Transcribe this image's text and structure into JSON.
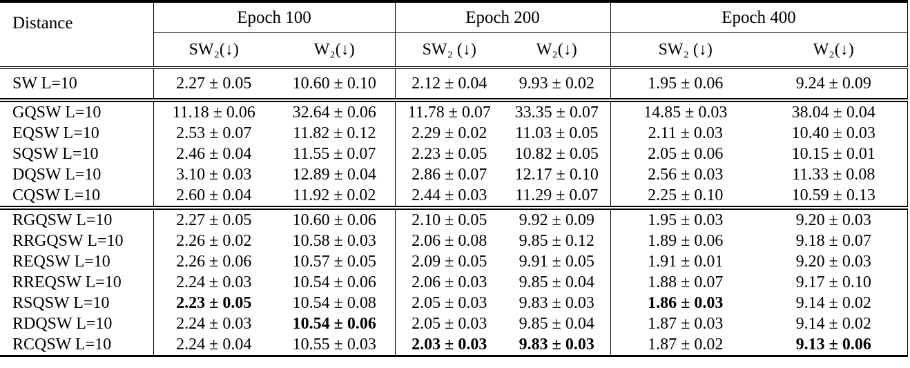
{
  "page": {
    "background_color": "#ffffff",
    "text_color": "#000000",
    "rule_color": "#000000"
  },
  "table": {
    "distance_header": "Distance",
    "epoch_groups": [
      {
        "label": "Epoch 100",
        "subcolumns": [
          "SW₂(↓)",
          "W₂(↓)"
        ]
      },
      {
        "label": "Epoch 200",
        "subcolumns": [
          "SW₂ (↓)",
          "W₂(↓)"
        ]
      },
      {
        "label": "Epoch 400",
        "subcolumns": [
          "SW₂ (↓)",
          "W₂(↓)"
        ]
      }
    ],
    "sections": [
      {
        "rows": [
          {
            "label": "SW L=10",
            "values": [
              "2.27 ± 0.05",
              "10.60 ± 0.10",
              "2.12 ± 0.04",
              "9.93 ± 0.02",
              "1.95 ± 0.06",
              "9.24 ± 0.09"
            ],
            "bold": []
          }
        ]
      },
      {
        "rows": [
          {
            "label": "GQSW L=10",
            "values": [
              "11.18 ± 0.06",
              "32.64 ± 0.06",
              "11.78 ± 0.07",
              "33.35 ± 0.07",
              "14.85 ± 0.03",
              "38.04 ± 0.04"
            ],
            "bold": []
          },
          {
            "label": "EQSW L=10",
            "values": [
              "2.53 ± 0.07",
              "11.82 ± 0.12",
              "2.29 ± 0.02",
              "11.03 ± 0.05",
              "2.11 ± 0.03",
              "10.40 ± 0.03"
            ],
            "bold": []
          },
          {
            "label": "SQSW L=10",
            "values": [
              "2.46 ± 0.04",
              "11.55 ± 0.07",
              "2.23 ± 0.05",
              "10.82 ± 0.05",
              "2.05 ± 0.06",
              "10.15 ± 0.01"
            ],
            "bold": []
          },
          {
            "label": "DQSW L=10",
            "values": [
              "3.10 ± 0.03",
              "12.89 ± 0.04",
              "2.86 ± 0.07",
              "12.17 ± 0.10",
              "2.56 ± 0.03",
              "11.33 ± 0.08"
            ],
            "bold": []
          },
          {
            "label": "CQSW L=10",
            "values": [
              "2.60 ± 0.04",
              "11.92 ± 0.02",
              "2.44 ± 0.03",
              "11.29 ± 0.07",
              "2.25 ± 0.10",
              "10.59 ± 0.13"
            ],
            "bold": []
          }
        ]
      },
      {
        "rows": [
          {
            "label": "RGQSW L=10",
            "values": [
              "2.27 ± 0.05",
              "10.60 ± 0.06",
              "2.10 ± 0.05",
              "9.92 ± 0.09",
              "1.95 ± 0.03",
              "9.20 ± 0.03"
            ],
            "bold": []
          },
          {
            "label": "RRGQSW L=10",
            "values": [
              "2.26 ± 0.02",
              "10.58 ± 0.03",
              "2.06 ± 0.08",
              "9.85 ± 0.12",
              "1.89 ± 0.06",
              "9.18 ± 0.07"
            ],
            "bold": []
          },
          {
            "label": "REQSW L=10",
            "values": [
              "2.26 ± 0.06",
              "10.57 ± 0.05",
              "2.09 ± 0.05",
              "9.91 ± 0.05",
              "1.91 ± 0.01",
              "9.20 ± 0.03"
            ],
            "bold": []
          },
          {
            "label": "RREQSW L=10",
            "values": [
              "2.24 ± 0.03",
              "10.54 ± 0.06",
              "2.06 ± 0.03",
              "9.85 ± 0.04",
              "1.88 ± 0.07",
              "9.17 ± 0.10"
            ],
            "bold": []
          },
          {
            "label": "RSQSW L=10",
            "values": [
              "2.23 ± 0.05",
              "10.54 ± 0.08",
              "2.05 ± 0.03",
              "9.83 ± 0.03",
              "1.86 ± 0.03",
              "9.14 ± 0.02"
            ],
            "bold": [
              0,
              4
            ]
          },
          {
            "label": "RDQSW L=10",
            "values": [
              "2.24 ± 0.03",
              "10.54 ± 0.06",
              "2.05 ± 0.03",
              "9.85 ± 0.04",
              "1.87 ± 0.03",
              "9.14 ± 0.02"
            ],
            "bold": [
              1
            ]
          },
          {
            "label": "RCQSW L=10",
            "values": [
              "2.24 ± 0.04",
              "10.55 ± 0.03",
              "2.03 ± 0.03",
              "9.83 ± 0.03",
              "1.87 ± 0.02",
              "9.13 ± 0.06"
            ],
            "bold": [
              2,
              3,
              5
            ]
          }
        ]
      }
    ]
  }
}
